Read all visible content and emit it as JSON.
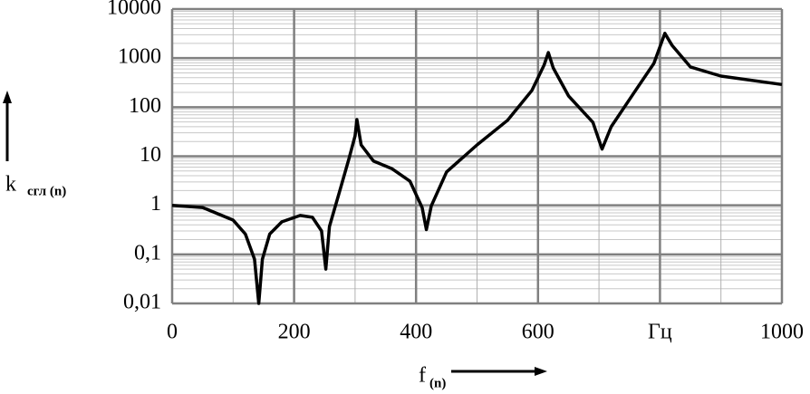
{
  "chart_data": {
    "type": "line",
    "y_label": "k",
    "y_label_sub": "сгл (n)",
    "x_label": "f",
    "x_label_sub": "(n)",
    "x": [
      0,
      50,
      100,
      120,
      135,
      142,
      148,
      160,
      180,
      210,
      230,
      245,
      252,
      258,
      275,
      290,
      300,
      303,
      310,
      330,
      360,
      390,
      410,
      417,
      425,
      450,
      500,
      550,
      590,
      610,
      617,
      625,
      650,
      690,
      705,
      720,
      760,
      790,
      808,
      820,
      850,
      900,
      1000
    ],
    "values": [
      1.0,
      0.9,
      0.5,
      0.26,
      0.08,
      0.01,
      0.08,
      0.26,
      0.46,
      0.62,
      0.57,
      0.3,
      0.05,
      0.37,
      2,
      9,
      26,
      56,
      17,
      8,
      5.6,
      3.1,
      0.9,
      0.32,
      0.97,
      4.8,
      17,
      54,
      220,
      720,
      1300,
      630,
      170,
      49,
      14,
      40,
      220,
      780,
      3200,
      1800,
      660,
      430,
      290
    ],
    "color": "#000000",
    "xlim": [
      0,
      1000
    ],
    "xticks": [
      0,
      200,
      400,
      600,
      {
        "value": 800,
        "label": "Гц"
      },
      1000
    ],
    "ylim": [
      0.01,
      10000
    ],
    "log_y": true,
    "yticks": [
      {
        "value": 0.01,
        "label": "0,01"
      },
      {
        "value": 0.1,
        "label": "0,1"
      },
      1,
      10,
      100,
      1000,
      10000
    ],
    "grid": true
  }
}
